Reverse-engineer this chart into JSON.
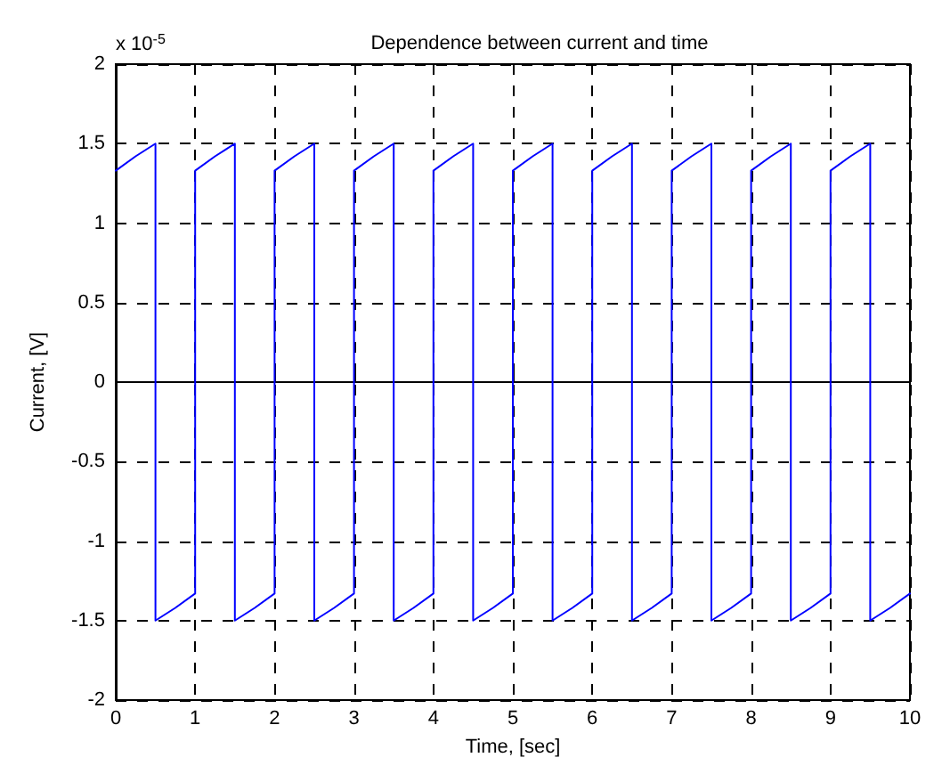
{
  "chart_data": {
    "type": "line",
    "title": "Dependence between current and time",
    "xlabel": "Time, [sec]",
    "ylabel": "Current, [V]",
    "annotations": [
      "x 10$^{-5}$"
    ],
    "x": [
      0,
      0.25,
      0.5,
      0.5,
      0.75,
      1,
      1,
      1.25,
      1.5,
      1.5,
      1.75,
      2,
      2,
      2.25,
      2.5,
      2.5,
      2.75,
      3,
      3,
      3.25,
      3.5,
      3.5,
      3.75,
      4,
      4,
      4.25,
      4.5,
      4.5,
      4.75,
      5,
      5,
      5.25,
      5.5,
      5.5,
      5.75,
      6,
      6,
      6.25,
      6.5,
      6.5,
      6.75,
      7,
      7,
      7.25,
      7.5,
      7.5,
      7.75,
      8,
      8,
      8.25,
      8.5,
      8.5,
      8.75,
      9,
      9,
      9.25,
      9.5,
      9.5,
      9.75,
      10
    ],
    "series": [
      {
        "color": "#0000ff",
        "values": [
          1.33,
          1.42,
          1.5,
          -1.5,
          -1.42,
          -1.33,
          1.33,
          1.42,
          1.5,
          -1.5,
          -1.42,
          -1.33,
          1.33,
          1.42,
          1.5,
          -1.5,
          -1.42,
          -1.33,
          1.33,
          1.42,
          1.5,
          -1.5,
          -1.42,
          -1.33,
          1.33,
          1.42,
          1.5,
          -1.5,
          -1.42,
          -1.33,
          1.33,
          1.42,
          1.5,
          -1.5,
          -1.42,
          -1.33,
          1.33,
          1.42,
          1.5,
          -1.5,
          -1.42,
          -1.33,
          1.33,
          1.42,
          1.5,
          -1.5,
          -1.42,
          -1.33,
          1.33,
          1.42,
          1.5,
          -1.5,
          -1.42,
          -1.33,
          1.33,
          1.42,
          1.5,
          -1.5,
          -1.42,
          -1.33
        ]
      }
    ],
    "xlim": [
      0,
      10
    ],
    "ylim": [
      -2,
      2
    ],
    "xticks": [
      0,
      1,
      2,
      3,
      4,
      5,
      6,
      7,
      8,
      9,
      10
    ],
    "yticks": [
      -2,
      -1.5,
      -1,
      -0.5,
      0,
      0.5,
      1,
      1.5,
      2
    ],
    "grid": true,
    "line_style": "solid"
  }
}
